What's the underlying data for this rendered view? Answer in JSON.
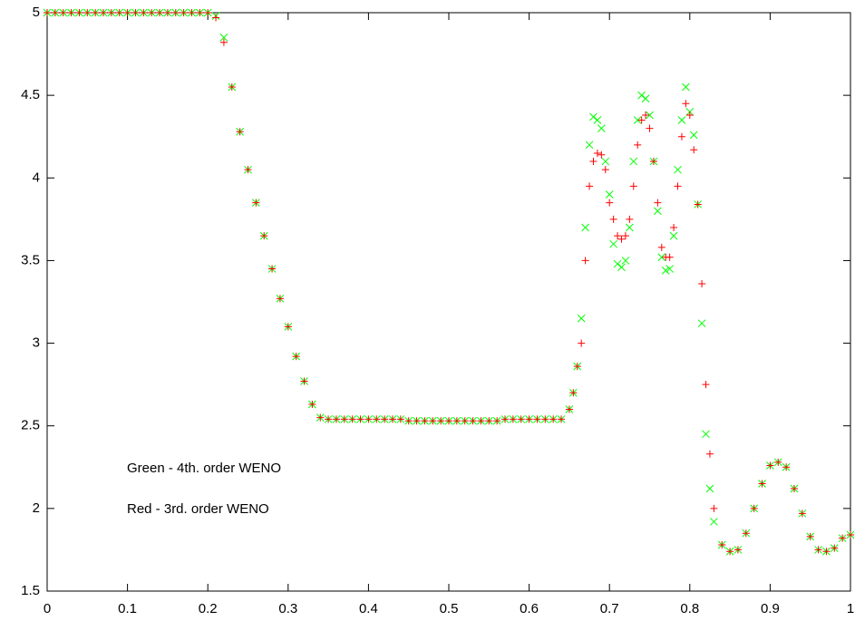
{
  "chart_data": {
    "type": "scatter",
    "x": [
      0,
      0.01,
      0.02,
      0.03,
      0.04,
      0.05,
      0.06,
      0.07,
      0.08,
      0.09,
      0.1,
      0.11,
      0.12,
      0.13,
      0.14,
      0.15,
      0.16,
      0.17,
      0.18,
      0.19,
      0.2,
      0.21,
      0.22,
      0.23,
      0.24,
      0.25,
      0.26,
      0.27,
      0.28,
      0.29,
      0.3,
      0.31,
      0.32,
      0.33,
      0.34,
      0.35,
      0.36,
      0.37,
      0.38,
      0.39,
      0.4,
      0.41,
      0.42,
      0.43,
      0.44,
      0.45,
      0.46,
      0.47,
      0.48,
      0.49,
      0.5,
      0.51,
      0.52,
      0.53,
      0.54,
      0.55,
      0.56,
      0.57,
      0.58,
      0.59,
      0.6,
      0.61,
      0.62,
      0.63,
      0.64,
      0.65,
      0.655,
      0.66,
      0.665,
      0.67,
      0.675,
      0.68,
      0.685,
      0.69,
      0.695,
      0.7,
      0.705,
      0.71,
      0.715,
      0.72,
      0.725,
      0.73,
      0.735,
      0.74,
      0.745,
      0.75,
      0.755,
      0.76,
      0.765,
      0.77,
      0.775,
      0.78,
      0.785,
      0.79,
      0.795,
      0.8,
      0.805,
      0.81,
      0.815,
      0.82,
      0.825,
      0.83,
      0.84,
      0.85,
      0.86,
      0.87,
      0.88,
      0.89,
      0.9,
      0.91,
      0.92,
      0.93,
      0.94,
      0.95,
      0.96,
      0.97,
      0.98,
      0.99,
      1.0
    ],
    "series": [
      {
        "name": "Green - 4th. order WENO",
        "color": "#00ff00",
        "marker": "x",
        "values": [
          5,
          5,
          5,
          5,
          5,
          5,
          5,
          5,
          5,
          5,
          5,
          5,
          5,
          5,
          5,
          5,
          5,
          5,
          5,
          5,
          5,
          4.98,
          4.85,
          4.55,
          4.28,
          4.05,
          3.85,
          3.65,
          3.45,
          3.27,
          3.1,
          2.92,
          2.77,
          2.63,
          2.55,
          2.54,
          2.54,
          2.54,
          2.54,
          2.54,
          2.54,
          2.54,
          2.54,
          2.54,
          2.54,
          2.53,
          2.53,
          2.53,
          2.53,
          2.53,
          2.53,
          2.53,
          2.53,
          2.53,
          2.53,
          2.53,
          2.53,
          2.54,
          2.54,
          2.54,
          2.54,
          2.54,
          2.54,
          2.54,
          2.54,
          2.6,
          2.7,
          2.86,
          3.15,
          3.7,
          4.2,
          4.37,
          4.35,
          4.3,
          4.1,
          3.9,
          3.6,
          3.48,
          3.46,
          3.5,
          3.7,
          4.1,
          4.35,
          4.5,
          4.48,
          4.38,
          4.1,
          3.8,
          3.52,
          3.44,
          3.45,
          3.65,
          4.05,
          4.35,
          4.55,
          4.4,
          4.26,
          3.84,
          3.12,
          2.45,
          2.12,
          1.92,
          1.78,
          1.74,
          1.75,
          1.85,
          2.0,
          2.15,
          2.26,
          2.28,
          2.25,
          2.12,
          1.97,
          1.83,
          1.75,
          1.74,
          1.76,
          1.82,
          1.84
        ]
      },
      {
        "name": "Red - 3rd. order WENO",
        "color": "#ff0000",
        "marker": "+",
        "values": [
          5,
          5,
          5,
          5,
          5,
          5,
          5,
          5,
          5,
          5,
          5,
          5,
          5,
          5,
          5,
          5,
          5,
          5,
          5,
          5,
          5,
          4.97,
          4.82,
          4.55,
          4.28,
          4.05,
          3.85,
          3.65,
          3.45,
          3.27,
          3.1,
          2.92,
          2.77,
          2.63,
          2.55,
          2.54,
          2.54,
          2.54,
          2.54,
          2.54,
          2.54,
          2.54,
          2.54,
          2.54,
          2.54,
          2.53,
          2.53,
          2.53,
          2.53,
          2.53,
          2.53,
          2.53,
          2.53,
          2.53,
          2.53,
          2.53,
          2.53,
          2.54,
          2.54,
          2.54,
          2.54,
          2.54,
          2.54,
          2.54,
          2.54,
          2.6,
          2.7,
          2.86,
          3.0,
          3.5,
          3.95,
          4.1,
          4.15,
          4.14,
          4.05,
          3.85,
          3.75,
          3.65,
          3.63,
          3.65,
          3.75,
          3.95,
          4.2,
          4.35,
          4.38,
          4.3,
          4.1,
          3.85,
          3.58,
          3.52,
          3.52,
          3.7,
          3.95,
          4.25,
          4.45,
          4.38,
          4.17,
          3.84,
          3.36,
          2.75,
          2.33,
          2.0,
          1.78,
          1.74,
          1.75,
          1.85,
          2.0,
          2.15,
          2.26,
          2.28,
          2.25,
          2.12,
          1.97,
          1.83,
          1.75,
          1.74,
          1.76,
          1.82,
          1.84
        ]
      }
    ],
    "xlim": [
      0,
      1
    ],
    "xticks": [
      0,
      0.1,
      0.2,
      0.3,
      0.4,
      0.5,
      0.6,
      0.7,
      0.8,
      0.9,
      1
    ],
    "ylim": [
      1.5,
      5
    ],
    "yticks": [
      1.5,
      2,
      2.5,
      3,
      3.5,
      4,
      4.5,
      5
    ],
    "grid": false
  }
}
